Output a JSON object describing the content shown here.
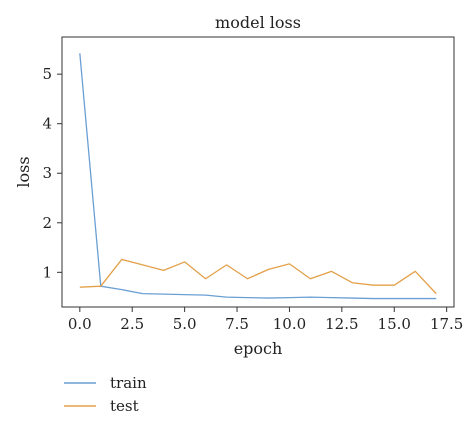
{
  "chart_data": {
    "type": "line",
    "title": "model loss",
    "xlabel": "epoch",
    "ylabel": "loss",
    "xlim": [
      -0.85,
      17.85
    ],
    "ylim": [
      0.3,
      5.75
    ],
    "x_ticks": [
      0.0,
      2.5,
      5.0,
      7.5,
      10.0,
      12.5,
      15.0,
      17.5
    ],
    "x_tick_labels": [
      "0.0",
      "2.5",
      "5.0",
      "7.5",
      "10.0",
      "12.5",
      "15.0",
      "17.5"
    ],
    "y_ticks": [
      1,
      2,
      3,
      4,
      5
    ],
    "y_tick_labels": [
      "1",
      "2",
      "3",
      "4",
      "5"
    ],
    "grid": false,
    "legend_placement": "bottom-left, below plot",
    "x": [
      0,
      1,
      2,
      3,
      4,
      5,
      6,
      7,
      8,
      9,
      10,
      11,
      12,
      13,
      14,
      15,
      16,
      17
    ],
    "series": [
      {
        "name": "train",
        "color": "#6a9fd4",
        "values": [
          5.42,
          0.72,
          0.65,
          0.57,
          0.56,
          0.55,
          0.54,
          0.5,
          0.49,
          0.48,
          0.49,
          0.5,
          0.49,
          0.48,
          0.47,
          0.47,
          0.47,
          0.47
        ]
      },
      {
        "name": "test",
        "color": "#e3a04a",
        "values": [
          0.7,
          0.72,
          1.26,
          1.15,
          1.04,
          1.21,
          0.87,
          1.15,
          0.87,
          1.06,
          1.17,
          0.87,
          1.02,
          0.79,
          0.74,
          0.74,
          1.02,
          0.57
        ]
      }
    ]
  }
}
